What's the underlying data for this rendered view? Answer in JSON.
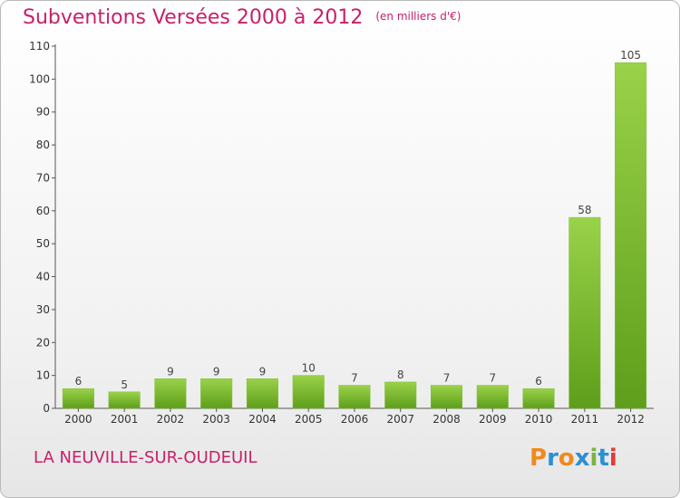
{
  "chart_data": {
    "type": "bar",
    "title": "Subventions Versées 2000 à 2012",
    "unit_note": "(en milliers d'€)",
    "categories": [
      "2000",
      "2001",
      "2002",
      "2003",
      "2004",
      "2005",
      "2006",
      "2007",
      "2008",
      "2009",
      "2010",
      "2011",
      "2012"
    ],
    "values": [
      6,
      5,
      9,
      9,
      9,
      10,
      7,
      8,
      7,
      7,
      6,
      58,
      105
    ],
    "ylim": [
      0,
      110
    ],
    "yticks": [
      0,
      10,
      20,
      30,
      40,
      50,
      60,
      70,
      80,
      90,
      100,
      110
    ],
    "grid": false,
    "bar_color": "#6faf25"
  },
  "commune": "LA NEUVILLE-SUR-OUDEUIL",
  "brand": {
    "name": "Proxiti",
    "letters": [
      "P",
      "r",
      "o",
      "x",
      "i",
      "t",
      "i"
    ],
    "colors": [
      "#f18a1c",
      "#2c8fd3",
      "#f18a1c",
      "#2c8fd3",
      "#7cb342",
      "#2c8fd3",
      "#e53935"
    ]
  },
  "colors": {
    "accent": "#c8206a"
  }
}
